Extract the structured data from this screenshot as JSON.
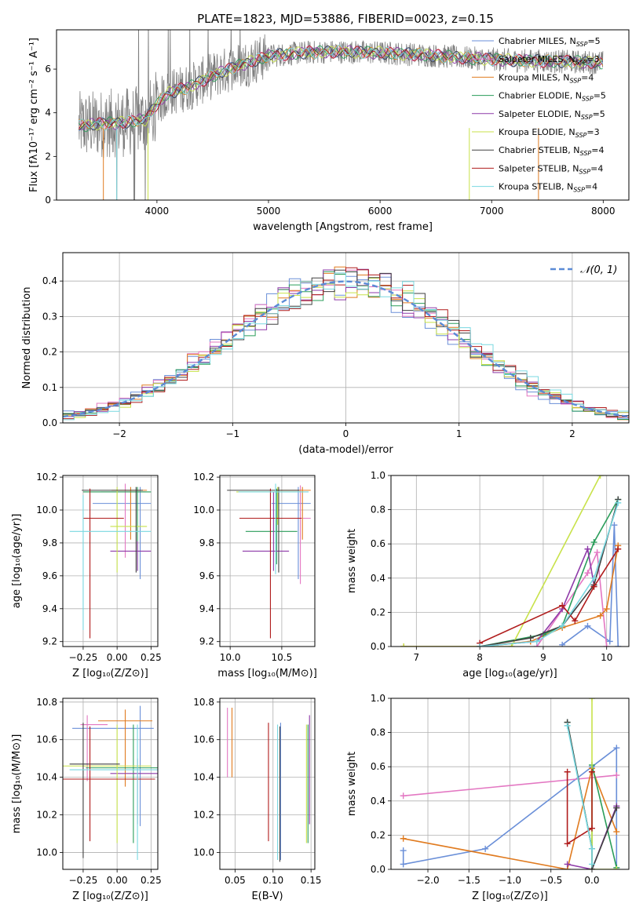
{
  "figure": {
    "title": "PLATE=1823, MJD=53886, FIBERID=0023, z=0.15"
  },
  "model_styles": [
    {
      "name": "Chabrier MILES",
      "color": "#6a8fd8"
    },
    {
      "name": "Salpeter MILES",
      "color": "#e377c2"
    },
    {
      "name": "Kroupa MILES",
      "color": "#e07b20"
    },
    {
      "name": "Chabrier ELODIE",
      "color": "#2a9d5a"
    },
    {
      "name": "Salpeter ELODIE",
      "color": "#8e3aa8"
    },
    {
      "name": "Kroupa ELODIE",
      "color": "#c8e24a"
    },
    {
      "name": "Chabrier STELIB",
      "color": "#404040"
    },
    {
      "name": "Salpeter STELIB",
      "color": "#b01c1c"
    },
    {
      "name": "Kroupa STELIB",
      "color": "#78d8e0"
    }
  ],
  "legend_nssp": [
    {
      "text": "Chabrier MILES, N",
      "sub": "SSP",
      "tail": "=5"
    },
    {
      "text": "Salpeter MILES, N",
      "sub": "SSP",
      "tail": "=3"
    },
    {
      "text": "Kroupa MILES, N",
      "sub": "SSP",
      "tail": "=4"
    },
    {
      "text": "Chabrier ELODIE, N",
      "sub": "SSP",
      "tail": "=5"
    },
    {
      "text": "Salpeter ELODIE, N",
      "sub": "SSP",
      "tail": "=5"
    },
    {
      "text": "Kroupa ELODIE, N",
      "sub": "SSP",
      "tail": "=3"
    },
    {
      "text": "Chabrier STELIB, N",
      "sub": "SSP",
      "tail": "=4"
    },
    {
      "text": "Salpeter STELIB, N",
      "sub": "SSP",
      "tail": "=4"
    },
    {
      "text": "Kroupa STELIB, N",
      "sub": "SSP",
      "tail": "=4"
    }
  ],
  "chart_data": [
    {
      "id": "spectrum",
      "type": "line",
      "xlabel": "wavelength [Angstrom, rest frame]",
      "ylabel": "Flux [fλ10⁻¹⁷ erg cm⁻² s⁻¹ A⁻¹]",
      "xlim": [
        3100,
        8230
      ],
      "ylim": [
        0,
        7.8
      ],
      "xticks": [
        "4000",
        "5000",
        "6000",
        "7000",
        "8000"
      ],
      "yticks": [
        "0",
        "2",
        "4",
        "6"
      ],
      "data_range": [
        3300,
        8000
      ],
      "continuum": {
        "x": [
          3300,
          3500,
          3700,
          3900,
          4000,
          4100,
          4300,
          4500,
          4700,
          5000,
          5300,
          5600,
          6000,
          6400,
          6800,
          7200,
          7600,
          8000
        ],
        "y": [
          3.4,
          3.5,
          3.55,
          3.7,
          4.4,
          4.9,
          5.2,
          5.7,
          6.1,
          6.6,
          6.75,
          6.8,
          6.75,
          6.65,
          6.5,
          6.4,
          6.35,
          6.3
        ]
      },
      "observed_series": "data",
      "observed_color": "#808080",
      "legend_position": "upper-right"
    },
    {
      "id": "residuals",
      "type": "histogram",
      "xlabel": "(data-model)/error",
      "ylabel": "Normed distribution",
      "xlim": [
        -2.5,
        2.5
      ],
      "ylim": [
        0,
        0.48
      ],
      "xticks": [
        "−2",
        "−1",
        "0",
        "1",
        "2"
      ],
      "yticks": [
        "0.0",
        "0.1",
        "0.2",
        "0.3",
        "0.4"
      ],
      "reference": {
        "name": "𝒩(0, 1)",
        "mean": 0,
        "sigma": 1
      },
      "bins": 50,
      "legend_position": "upper-right"
    },
    {
      "id": "age-vs-Z",
      "type": "errorbar",
      "xlabel": "Z [log₁₀(Z/Z⊙)]",
      "ylabel": "age  [log₁₀(age/yr)]",
      "xlim": [
        -0.4,
        0.3
      ],
      "ylim": [
        9.17,
        10.21
      ],
      "xticks": [
        "−0.25",
        "0.00",
        "0.25"
      ],
      "xtick_values": [
        -0.25,
        0,
        0.25
      ],
      "yticks": [
        "9.2",
        "9.4",
        "9.6",
        "9.8",
        "10.0",
        "10.2"
      ],
      "ytick_values": [
        9.2,
        9.4,
        9.6,
        9.8,
        10.0,
        10.2
      ],
      "points": [
        {
          "model": 0,
          "x": 0.17,
          "xerr": [
            0.35,
            0.08
          ],
          "y": 10.04,
          "yerr": [
            0.46,
            0.1
          ]
        },
        {
          "model": 1,
          "x": 0.06,
          "xerr": [
            0.18,
            0.15
          ],
          "y": 10.11,
          "yerr": [
            0.4,
            0.05
          ]
        },
        {
          "model": 2,
          "x": 0.1,
          "xerr": [
            0.14,
            0.12
          ],
          "y": 10.12,
          "yerr": [
            0.3,
            0.02
          ]
        },
        {
          "model": 3,
          "x": 0.15,
          "xerr": [
            0.4,
            0.1
          ],
          "y": 10.11,
          "yerr": [
            0.48,
            0.03
          ]
        },
        {
          "model": 4,
          "x": 0.15,
          "xerr": [
            0.2,
            0.1
          ],
          "y": 9.75,
          "yerr": [
            0.12,
            0.06
          ]
        },
        {
          "model": 5,
          "x": 0.0,
          "xerr": [
            0.05,
            0.22
          ],
          "y": 9.9,
          "yerr": [
            0.28,
            0.24
          ]
        },
        {
          "model": 6,
          "x": 0.14,
          "xerr": [
            0.4,
            0.05
          ],
          "y": 10.12,
          "yerr": [
            0.5,
            0.02
          ]
        },
        {
          "model": 7,
          "x": -0.2,
          "xerr": [
            0.05,
            0.25
          ],
          "y": 9.95,
          "yerr": [
            0.73,
            0.18
          ]
        },
        {
          "model": 8,
          "x": -0.25,
          "xerr": [
            0.1,
            0.5
          ],
          "y": 9.87,
          "yerr": [
            0.6,
            0.22
          ]
        }
      ]
    },
    {
      "id": "age-vs-mass",
      "type": "errorbar",
      "xlabel": "mass [log₁₀(M/M⊙)]",
      "ylabel": "",
      "xlim": [
        9.9,
        10.82
      ],
      "ylim": [
        9.17,
        10.21
      ],
      "xticks": [
        "10.0",
        "10.5"
      ],
      "xtick_values": [
        10.0,
        10.5
      ],
      "yticks": [
        "9.2",
        "9.4",
        "9.6",
        "9.8",
        "10.0",
        "10.2"
      ],
      "ytick_values": [
        9.2,
        9.4,
        9.6,
        9.8,
        10.0,
        10.2
      ],
      "points": [
        {
          "model": 0,
          "x": 10.66,
          "xerr": [
            0.26,
            0.12
          ],
          "y": 10.04,
          "yerr": [
            0.46,
            0.1
          ]
        },
        {
          "model": 1,
          "x": 10.68,
          "xerr": [
            0.28,
            0.1
          ],
          "y": 9.95,
          "yerr": [
            0.4,
            0.2
          ]
        },
        {
          "model": 2,
          "x": 10.7,
          "xerr": [
            0.22,
            0.08
          ],
          "y": 10.12,
          "yerr": [
            0.3,
            0.02
          ]
        },
        {
          "model": 3,
          "x": 10.45,
          "xerr": [
            0.3,
            0.2
          ],
          "y": 9.87,
          "yerr": [
            0.2,
            0.26
          ]
        },
        {
          "model": 4,
          "x": 10.42,
          "xerr": [
            0.3,
            0.15
          ],
          "y": 9.75,
          "yerr": [
            0.12,
            0.36
          ]
        },
        {
          "model": 5,
          "x": 10.46,
          "xerr": [
            0.4,
            0.25
          ],
          "y": 10.11,
          "yerr": [
            0.2,
            0.03
          ]
        },
        {
          "model": 6,
          "x": 10.47,
          "xerr": [
            0.5,
            0.2
          ],
          "y": 10.12,
          "yerr": [
            0.5,
            0.02
          ]
        },
        {
          "model": 7,
          "x": 10.39,
          "xerr": [
            0.3,
            0.3
          ],
          "y": 9.95,
          "yerr": [
            0.73,
            0.18
          ]
        },
        {
          "model": 8,
          "x": 10.44,
          "xerr": [
            0.36,
            0.32
          ],
          "y": 10.11,
          "yerr": [
            0.5,
            0.05
          ]
        }
      ]
    },
    {
      "id": "weight-vs-age",
      "type": "line",
      "xlabel": "age  [log₁₀(age/yr)]",
      "ylabel": "mass weight",
      "xlim": [
        6.6,
        10.35
      ],
      "ylim": [
        0,
        1.0
      ],
      "xticks": [
        "7",
        "8",
        "9",
        "10"
      ],
      "xtick_values": [
        7,
        8,
        9,
        10
      ],
      "yticks": [
        "0.0",
        "0.2",
        "0.4",
        "0.6",
        "0.8",
        "1.0"
      ],
      "ytick_values": [
        0,
        0.2,
        0.4,
        0.6,
        0.8,
        1.0
      ],
      "series": [
        {
          "model": 0,
          "x": [
            9.3,
            9.7,
            10.05,
            10.12,
            10.18
          ],
          "y": [
            0.01,
            0.12,
            0.03,
            0.71,
            0.0
          ]
        },
        {
          "model": 1,
          "x": [
            8.9,
            9.7,
            9.85,
            10.0
          ],
          "y": [
            0.0,
            0.43,
            0.55,
            0.0
          ]
        },
        {
          "model": 2,
          "x": [
            6.8,
            8.0,
            8.8,
            9.3,
            9.9,
            10.0,
            10.18
          ],
          "y": [
            0.0,
            0.0,
            0.03,
            0.11,
            0.18,
            0.22,
            0.59
          ]
        },
        {
          "model": 3,
          "x": [
            8.0,
            9.0,
            9.3,
            9.8,
            10.18
          ],
          "y": [
            0.0,
            0.07,
            0.12,
            0.61,
            0.86
          ]
        },
        {
          "model": 4,
          "x": [
            8.0,
            8.9,
            9.3,
            9.7,
            9.8
          ],
          "y": [
            0.0,
            0.03,
            0.22,
            0.57,
            0.36
          ]
        },
        {
          "model": 5,
          "x": [
            6.8,
            8.5,
            9.9
          ],
          "y": [
            0.0,
            0.0,
            1.0
          ]
        },
        {
          "model": 6,
          "x": [
            8.0,
            8.8,
            9.3,
            9.8,
            10.18
          ],
          "y": [
            0.0,
            0.05,
            0.12,
            0.36,
            0.86
          ]
        },
        {
          "model": 7,
          "x": [
            8.0,
            9.3,
            9.5,
            9.8,
            10.18
          ],
          "y": [
            0.02,
            0.24,
            0.15,
            0.35,
            0.57
          ]
        },
        {
          "model": 8,
          "x": [
            8.0,
            8.9,
            9.3,
            9.8,
            10.18
          ],
          "y": [
            0.0,
            0.03,
            0.12,
            0.4,
            0.84
          ]
        }
      ]
    },
    {
      "id": "mass-vs-Z",
      "type": "errorbar",
      "xlabel": "Z [log₁₀(Z/Z⊙)]",
      "ylabel": "mass [log₁₀(M/M⊙)]",
      "xlim": [
        -0.4,
        0.3
      ],
      "ylim": [
        9.91,
        10.82
      ],
      "xticks": [
        "−0.25",
        "0.00",
        "0.25"
      ],
      "xtick_values": [
        -0.25,
        0,
        0.25
      ],
      "yticks": [
        "10.0",
        "10.2",
        "10.4",
        "10.6",
        "10.8"
      ],
      "ytick_values": [
        10.0,
        10.2,
        10.4,
        10.6,
        10.8
      ],
      "points": [
        {
          "model": 0,
          "x": 0.17,
          "xerr": [
            0.5,
            0.1
          ],
          "y": 10.66,
          "yerr": [
            0.52,
            0.12
          ]
        },
        {
          "model": 1,
          "x": -0.22,
          "xerr": [
            0.05,
            0.15
          ],
          "y": 10.68,
          "yerr": [
            0.3,
            0.05
          ]
        },
        {
          "model": 2,
          "x": 0.06,
          "xerr": [
            0.2,
            0.2
          ],
          "y": 10.7,
          "yerr": [
            0.35,
            0.06
          ]
        },
        {
          "model": 3,
          "x": 0.12,
          "xerr": [
            0.35,
            0.2
          ],
          "y": 10.45,
          "yerr": [
            0.4,
            0.23
          ]
        },
        {
          "model": 4,
          "x": 0.15,
          "xerr": [
            0.2,
            0.2
          ],
          "y": 10.42,
          "yerr": [
            0.27,
            0.08
          ]
        },
        {
          "model": 5,
          "x": 0.0,
          "xerr": [
            0.4,
            0.25
          ],
          "y": 10.46,
          "yerr": [
            0.41,
            0.22
          ]
        },
        {
          "model": 6,
          "x": -0.25,
          "xerr": [
            0.1,
            0.27
          ],
          "y": 10.47,
          "yerr": [
            0.5,
            0.22
          ]
        },
        {
          "model": 7,
          "x": -0.2,
          "xerr": [
            0.2,
            0.48
          ],
          "y": 10.39,
          "yerr": [
            0.33,
            0.28
          ]
        },
        {
          "model": 8,
          "x": 0.15,
          "xerr": [
            0.5,
            0.15
          ],
          "y": 10.44,
          "yerr": [
            0.48,
            0.24
          ]
        }
      ]
    },
    {
      "id": "mass-vs-EBV",
      "type": "errorbar",
      "xlabel": "E(B-V)",
      "ylabel": "",
      "xlim": [
        0.03,
        0.155
      ],
      "ylim": [
        9.91,
        10.82
      ],
      "xticks": [
        "0.05",
        "0.10",
        "0.15"
      ],
      "xtick_values": [
        0.05,
        0.1,
        0.15
      ],
      "yticks": [
        "10.0",
        "10.2",
        "10.4",
        "10.6",
        "10.8"
      ],
      "ytick_values": [
        10.0,
        10.2,
        10.4,
        10.6,
        10.8
      ],
      "points": [
        {
          "model": 0,
          "x": 0.11,
          "xerr": [
            0,
            0
          ],
          "y": 10.43,
          "yerr": [
            0.47,
            0.26
          ]
        },
        {
          "model": 1,
          "x": 0.04,
          "xerr": [
            0,
            0
          ],
          "y": 10.6,
          "yerr": [
            0.2,
            0.17
          ]
        },
        {
          "model": 2,
          "x": 0.046,
          "xerr": [
            0,
            0
          ],
          "y": 10.6,
          "yerr": [
            0.2,
            0.17
          ]
        },
        {
          "model": 3,
          "x": 0.146,
          "xerr": [
            0,
            0
          ],
          "y": 10.45,
          "yerr": [
            0.4,
            0.23
          ]
        },
        {
          "model": 4,
          "x": 0.148,
          "xerr": [
            0,
            0
          ],
          "y": 10.42,
          "yerr": [
            0.27,
            0.31
          ]
        },
        {
          "model": 5,
          "x": 0.144,
          "xerr": [
            0,
            0
          ],
          "y": 10.46,
          "yerr": [
            0.41,
            0.22
          ]
        },
        {
          "model": 6,
          "x": 0.109,
          "xerr": [
            0,
            0
          ],
          "y": 10.47,
          "yerr": [
            0.52,
            0.2
          ]
        },
        {
          "model": 7,
          "x": 0.094,
          "xerr": [
            0,
            0
          ],
          "y": 10.39,
          "yerr": [
            0.33,
            0.3
          ]
        },
        {
          "model": 8,
          "x": 0.106,
          "xerr": [
            0,
            0
          ],
          "y": 10.44,
          "yerr": [
            0.48,
            0.24
          ]
        }
      ]
    },
    {
      "id": "weight-vs-Z",
      "type": "line",
      "xlabel": "Z [log₁₀(Z/Z⊙)]",
      "ylabel": "mass weight",
      "xlim": [
        -2.45,
        0.45
      ],
      "ylim": [
        0,
        1.0
      ],
      "xticks": [
        "−2.0",
        "−1.5",
        "−1.0",
        "−0.5",
        "0.0"
      ],
      "xtick_values": [
        -2.0,
        -1.5,
        -1.0,
        -0.5,
        0.0
      ],
      "yticks": [
        "0.0",
        "0.2",
        "0.4",
        "0.6",
        "0.8",
        "1.0"
      ],
      "ytick_values": [
        0,
        0.2,
        0.4,
        0.6,
        0.8,
        1.0
      ],
      "series": [
        {
          "model": 0,
          "x": [
            -2.3,
            -2.3,
            -1.3,
            0.0,
            0.3,
            0.3
          ],
          "y": [
            0.11,
            0.03,
            0.12,
            0.6,
            0.71,
            0.0
          ]
        },
        {
          "model": 1,
          "x": [
            -2.3,
            0.3
          ],
          "y": [
            0.43,
            0.55
          ]
        },
        {
          "model": 2,
          "x": [
            -2.3,
            -0.3,
            0.0,
            0.3
          ],
          "y": [
            0.18,
            0.0,
            0.59,
            0.22
          ]
        },
        {
          "model": 3,
          "x": [
            -0.3,
            0.0,
            0.0,
            0.3
          ],
          "y": [
            0.86,
            0.12,
            0.61,
            0.01
          ]
        },
        {
          "model": 4,
          "x": [
            -0.3,
            0.0,
            0.3,
            0.3
          ],
          "y": [
            0.03,
            0.0,
            0.37,
            0.36
          ]
        },
        {
          "model": 5,
          "x": [
            0.0,
            0.0,
            0.3
          ],
          "y": [
            1.0,
            0.0,
            0.0
          ]
        },
        {
          "model": 6,
          "x": [
            -0.3,
            0.0,
            0.0,
            0.3
          ],
          "y": [
            0.86,
            0.12,
            0.0,
            0.36
          ]
        },
        {
          "model": 7,
          "x": [
            -0.3,
            -0.3,
            0.0,
            0.0
          ],
          "y": [
            0.57,
            0.15,
            0.24,
            0.57
          ]
        },
        {
          "model": 8,
          "x": [
            -0.3,
            0.0,
            0.0
          ],
          "y": [
            0.84,
            0.12,
            0.03
          ]
        }
      ]
    }
  ]
}
